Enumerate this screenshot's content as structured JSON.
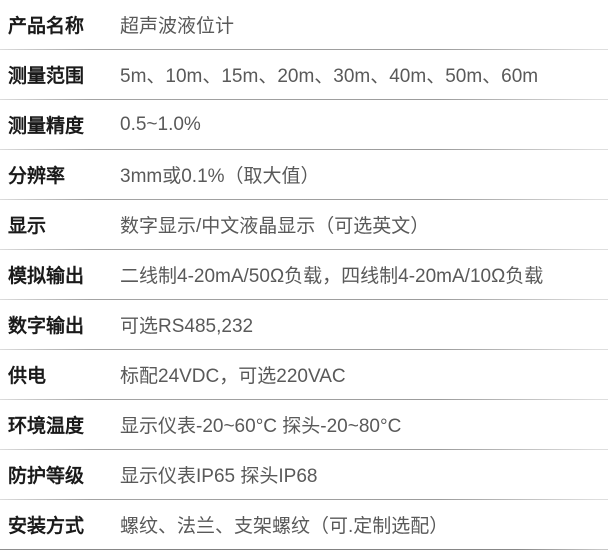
{
  "table": {
    "rows": [
      {
        "label": "产品名称",
        "value": "超声波液位计"
      },
      {
        "label": "测量范围",
        "value": "5m、10m、15m、20m、30m、40m、50m、60m"
      },
      {
        "label": "测量精度",
        "value": "0.5~1.0%"
      },
      {
        "label": "分辨率",
        "value": "3mm或0.1%（取大值）"
      },
      {
        "label": "显示",
        "value": "数字显示/中文液晶显示（可选英文）"
      },
      {
        "label": "模拟输出",
        "value": "二线制4-20mA/50Ω负载，四线制4-20mA/10Ω负载"
      },
      {
        "label": "数字输出",
        "value": "可选RS485,232"
      },
      {
        "label": "供电",
        "value": "标配24VDC，可选220VAC"
      },
      {
        "label": "环境温度",
        "value": "显示仪表-20~60°C 探头-20~80°C"
      },
      {
        "label": "防护等级",
        "value": "显示仪表IP65 探头IP68"
      },
      {
        "label": "安装方式",
        "value": "螺纹、法兰、支架螺纹（可.定制选配）"
      }
    ],
    "colors": {
      "background": "#ffffff",
      "label_text": "#1a1a1a",
      "value_text": "#595959",
      "row_divider": "#9c9c9c",
      "bottom_border": "#828282"
    }
  }
}
